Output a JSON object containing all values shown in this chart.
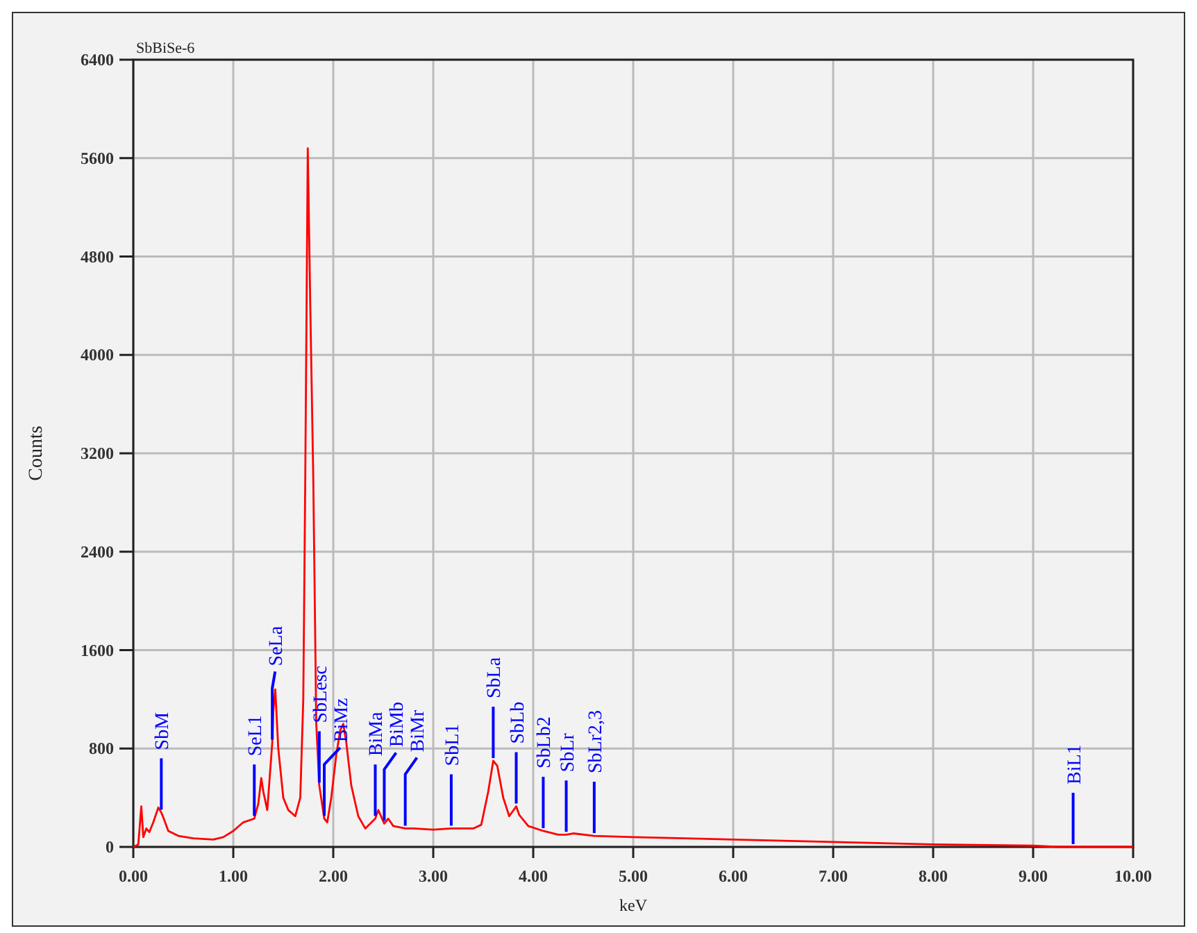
{
  "chart_data": {
    "type": "line",
    "title": "SbBiSe-6",
    "xlabel": "keV",
    "ylabel": "Counts",
    "x": [
      0,
      0.05,
      0.08,
      0.1,
      0.13,
      0.16,
      0.2,
      0.25,
      0.28,
      0.3,
      0.35,
      0.45,
      0.6,
      0.8,
      0.9,
      1,
      1.1,
      1.21,
      1.25,
      1.28,
      1.3,
      1.34,
      1.39,
      1.4,
      1.42,
      1.45,
      1.5,
      1.55,
      1.62,
      1.67,
      1.7,
      1.72,
      1.745,
      1.77,
      1.8,
      1.83,
      1.86,
      1.91,
      1.94,
      1.98,
      2.03,
      2.07,
      2.1,
      2.13,
      2.18,
      2.25,
      2.32,
      2.42,
      2.45,
      2.51,
      2.55,
      2.6,
      2.72,
      2.8,
      3,
      3.18,
      3.4,
      3.48,
      3.55,
      3.6,
      3.64,
      3.7,
      3.76,
      3.83,
      3.86,
      3.95,
      4.1,
      4.25,
      4.33,
      4.4,
      4.61,
      5,
      6,
      7,
      8,
      9,
      9.25,
      9.4,
      10
    ],
    "series": [
      {
        "color": "#ff0000",
        "values": [
          0,
          20,
          330,
          80,
          150,
          120,
          200,
          320,
          280,
          240,
          130,
          90,
          70,
          60,
          80,
          130,
          200,
          230,
          350,
          560,
          450,
          300,
          850,
          1100,
          1280,
          800,
          400,
          300,
          250,
          400,
          1200,
          3000,
          5680,
          4400,
          3000,
          1000,
          500,
          230,
          200,
          400,
          750,
          950,
          1000,
          850,
          500,
          250,
          150,
          230,
          300,
          190,
          230,
          170,
          150,
          150,
          140,
          150,
          150,
          180,
          450,
          700,
          660,
          400,
          250,
          330,
          260,
          170,
          130,
          100,
          100,
          110,
          90,
          80,
          60,
          40,
          20,
          10,
          0,
          0,
          0
        ]
      }
    ],
    "xlim": [
      0,
      10
    ],
    "xticks": [
      {
        "value": 0,
        "label": "0.00"
      },
      {
        "value": 1,
        "label": "1.00"
      },
      {
        "value": 2,
        "label": "2.00"
      },
      {
        "value": 3,
        "label": "3.00"
      },
      {
        "value": 4,
        "label": "4.00"
      },
      {
        "value": 5,
        "label": "5.00"
      },
      {
        "value": 6,
        "label": "6.00"
      },
      {
        "value": 7,
        "label": "7.00"
      },
      {
        "value": 8,
        "label": "8.00"
      },
      {
        "value": 9,
        "label": "9.00"
      },
      {
        "value": 10,
        "label": "10.00"
      }
    ],
    "ylim": [
      0,
      6400
    ],
    "yticks": [
      0,
      800,
      1600,
      2400,
      3200,
      4000,
      4800,
      5600,
      6400
    ],
    "grid": true,
    "marker": "none",
    "line_style": "solid",
    "annotations": [
      {
        "text": "SbM",
        "x": 0.28,
        "y": 280
      },
      {
        "text": "SeL1",
        "x": 1.21,
        "y": 230
      },
      {
        "text": "SeLa",
        "x": 1.39,
        "y": 850
      },
      {
        "text": "SbLesc",
        "x": 1.86,
        "y": 500
      },
      {
        "text": "BiMz",
        "x": 1.91,
        "y": 230
      },
      {
        "text": "BiMa",
        "x": 2.42,
        "y": 230
      },
      {
        "text": "BiMb",
        "x": 2.51,
        "y": 190
      },
      {
        "text": "BiMr",
        "x": 2.72,
        "y": 150
      },
      {
        "text": "SbL1",
        "x": 3.18,
        "y": 150
      },
      {
        "text": "SbLa",
        "x": 3.6,
        "y": 700
      },
      {
        "text": "SbLb",
        "x": 3.83,
        "y": 330
      },
      {
        "text": "SbLb2",
        "x": 4.1,
        "y": 130
      },
      {
        "text": "SbLr",
        "x": 4.33,
        "y": 100
      },
      {
        "text": "SbLr2,3",
        "x": 4.61,
        "y": 90
      },
      {
        "text": "BiL1",
        "x": 9.4,
        "y": 0
      }
    ]
  }
}
